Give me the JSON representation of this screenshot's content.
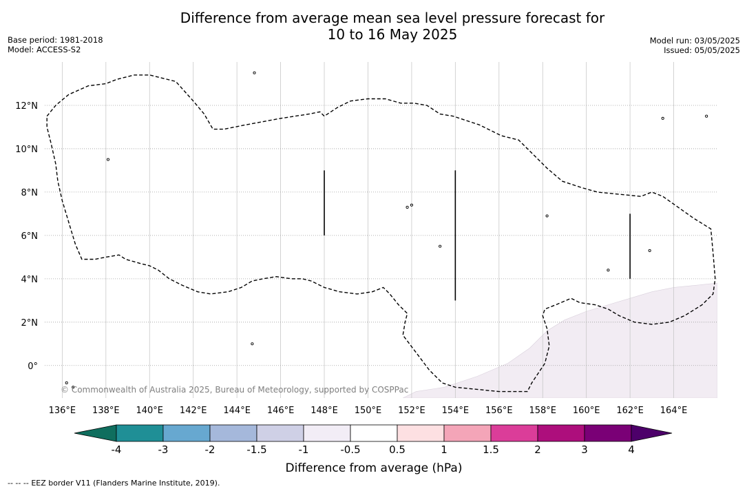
{
  "header": {
    "title_line1": "Difference from average mean sea level pressure forecast for",
    "title_line2": "10 to 16 May 2025",
    "base_period": "Base period: 1981-2018",
    "model": "Model: ACCESS-S2",
    "model_run": "Model run: 03/05/2025",
    "issued": "Issued: 05/05/2025"
  },
  "map": {
    "lon_range": [
      135.2,
      166.0
    ],
    "lat_range": [
      -1.5,
      14.0
    ],
    "lon_ticks": [
      136,
      138,
      140,
      142,
      144,
      146,
      148,
      150,
      152,
      154,
      156,
      158,
      160,
      162,
      164
    ],
    "lat_ticks": [
      0,
      2,
      4,
      6,
      8,
      10,
      12
    ],
    "lon_labels": [
      "136°E",
      "138°E",
      "140°E",
      "142°E",
      "144°E",
      "146°E",
      "148°E",
      "150°E",
      "152°E",
      "154°E",
      "156°E",
      "158°E",
      "160°E",
      "162°E",
      "164°E"
    ],
    "lat_labels": [
      "0°",
      "2°N",
      "4°N",
      "6°N",
      "8°N",
      "10°N",
      "12°N"
    ],
    "copyright": "© Commonwealth of Australia 2025, Bureau of Meteorology, supported by COSPPac",
    "shaded_region_color": "#f2ecf3",
    "eez_outline": [
      [
        135.3,
        11.5
      ],
      [
        135.7,
        12.0
      ],
      [
        136.3,
        12.5
      ],
      [
        137.2,
        12.9
      ],
      [
        138.0,
        13.0
      ],
      [
        138.5,
        13.2
      ],
      [
        139.3,
        13.4
      ],
      [
        140.0,
        13.4
      ],
      [
        141.2,
        13.1
      ],
      [
        142.0,
        12.2
      ],
      [
        142.5,
        11.6
      ],
      [
        142.9,
        10.9
      ],
      [
        143.4,
        10.9
      ],
      [
        144.4,
        11.1
      ],
      [
        146.0,
        11.4
      ],
      [
        147.3,
        11.6
      ],
      [
        147.8,
        11.7
      ],
      [
        148.0,
        11.5
      ],
      [
        148.6,
        11.9
      ],
      [
        149.2,
        12.2
      ],
      [
        150.0,
        12.3
      ],
      [
        150.8,
        12.3
      ],
      [
        151.5,
        12.1
      ],
      [
        152.1,
        12.1
      ],
      [
        152.7,
        12.0
      ],
      [
        153.3,
        11.6
      ],
      [
        153.9,
        11.5
      ],
      [
        154.5,
        11.3
      ],
      [
        155.1,
        11.1
      ],
      [
        156.1,
        10.6
      ],
      [
        156.9,
        10.4
      ],
      [
        157.5,
        9.8
      ],
      [
        158.2,
        9.1
      ],
      [
        158.9,
        8.5
      ],
      [
        159.8,
        8.2
      ],
      [
        160.5,
        8.0
      ],
      [
        161.5,
        7.9
      ],
      [
        162.5,
        7.8
      ],
      [
        163.0,
        8.0
      ],
      [
        163.5,
        7.8
      ],
      [
        164.2,
        7.3
      ],
      [
        164.9,
        6.8
      ],
      [
        165.7,
        6.3
      ],
      [
        165.8,
        5.2
      ],
      [
        165.9,
        4.0
      ],
      [
        165.8,
        3.3
      ],
      [
        165.3,
        2.8
      ],
      [
        164.5,
        2.3
      ],
      [
        163.8,
        2.0
      ],
      [
        163.0,
        1.9
      ],
      [
        162.2,
        2.0
      ],
      [
        161.5,
        2.3
      ],
      [
        161.0,
        2.6
      ],
      [
        160.4,
        2.8
      ],
      [
        159.7,
        2.9
      ],
      [
        159.3,
        3.1
      ],
      [
        158.6,
        2.8
      ],
      [
        158.1,
        2.6
      ],
      [
        158.0,
        2.3
      ],
      [
        158.2,
        1.7
      ],
      [
        158.3,
        0.9
      ],
      [
        158.1,
        0.1
      ],
      [
        157.5,
        -0.8
      ],
      [
        157.3,
        -1.2
      ],
      [
        156.0,
        -1.2
      ],
      [
        155.0,
        -1.1
      ],
      [
        154.0,
        -1.0
      ],
      [
        153.4,
        -0.8
      ],
      [
        152.8,
        -0.2
      ],
      [
        152.2,
        0.6
      ],
      [
        151.6,
        1.4
      ],
      [
        151.7,
        2.0
      ],
      [
        151.8,
        2.4
      ],
      [
        151.4,
        2.8
      ],
      [
        151.0,
        3.3
      ],
      [
        150.7,
        3.6
      ],
      [
        150.2,
        3.4
      ],
      [
        149.5,
        3.3
      ],
      [
        148.7,
        3.4
      ],
      [
        148.0,
        3.6
      ],
      [
        147.4,
        3.9
      ],
      [
        147.0,
        4.0
      ],
      [
        146.5,
        4.0
      ],
      [
        145.8,
        4.1
      ],
      [
        145.2,
        4.0
      ],
      [
        144.7,
        3.9
      ],
      [
        144.2,
        3.6
      ],
      [
        143.6,
        3.4
      ],
      [
        142.8,
        3.3
      ],
      [
        142.2,
        3.4
      ],
      [
        141.5,
        3.7
      ],
      [
        140.9,
        4.0
      ],
      [
        140.4,
        4.4
      ],
      [
        140.0,
        4.6
      ],
      [
        139.6,
        4.7
      ],
      [
        138.9,
        4.9
      ],
      [
        138.6,
        5.1
      ],
      [
        138.0,
        5.0
      ],
      [
        137.5,
        4.9
      ],
      [
        136.9,
        4.9
      ],
      [
        136.6,
        5.6
      ],
      [
        136.3,
        6.6
      ],
      [
        136.0,
        7.6
      ],
      [
        135.8,
        8.5
      ],
      [
        135.7,
        9.3
      ],
      [
        135.5,
        10.2
      ],
      [
        135.3,
        11.0
      ],
      [
        135.3,
        11.5
      ]
    ],
    "shaded_boundary": [
      [
        151.6,
        -1.5
      ],
      [
        152.2,
        -1.2
      ],
      [
        153.5,
        -1.0
      ],
      [
        155.0,
        -0.5
      ],
      [
        156.4,
        0.1
      ],
      [
        157.4,
        0.8
      ],
      [
        158.2,
        1.6
      ],
      [
        159.0,
        2.1
      ],
      [
        160.0,
        2.5
      ],
      [
        161.0,
        2.8
      ],
      [
        162.0,
        3.1
      ],
      [
        163.0,
        3.4
      ],
      [
        164.0,
        3.6
      ],
      [
        165.0,
        3.7
      ],
      [
        166.0,
        3.8
      ]
    ],
    "boundary_lines": [
      [
        [
          148.0,
          9.0
        ],
        [
          148.0,
          6.0
        ]
      ],
      [
        [
          154.0,
          9.0
        ],
        [
          154.0,
          3.0
        ]
      ],
      [
        [
          162.0,
          7.0
        ],
        [
          162.0,
          4.0
        ]
      ]
    ],
    "islands": [
      [
        144.8,
        13.5
      ],
      [
        138.1,
        9.5
      ],
      [
        136.2,
        -0.8
      ],
      [
        136.5,
        -1.0
      ],
      [
        161.0,
        4.4
      ],
      [
        162.9,
        5.3
      ],
      [
        152.0,
        7.4
      ],
      [
        151.8,
        7.3
      ],
      [
        158.2,
        6.9
      ],
      [
        144.7,
        1.0
      ],
      [
        163.5,
        11.4
      ],
      [
        165.5,
        11.5
      ],
      [
        153.3,
        5.5
      ]
    ]
  },
  "colorbar": {
    "title": "Difference from average (hPa)",
    "colors": [
      "#0f6e5e",
      "#1f8f96",
      "#67a8d0",
      "#a5b8db",
      "#cfd0e6",
      "#f2edf6",
      "#ffffff",
      "#fde0e2",
      "#f4a5b8",
      "#db3d99",
      "#ad0e7c",
      "#7a0076",
      "#4d006a"
    ],
    "labels": [
      "-4",
      "-3",
      "-2",
      "-1.5",
      "-1",
      "-0.5",
      "0.5",
      "1",
      "1.5",
      "2",
      "3",
      "4"
    ]
  },
  "footer": {
    "legend_symbol": "--  --  --",
    "legend_text": "EEZ border V11 (Flanders Marine Institute, 2019)."
  }
}
